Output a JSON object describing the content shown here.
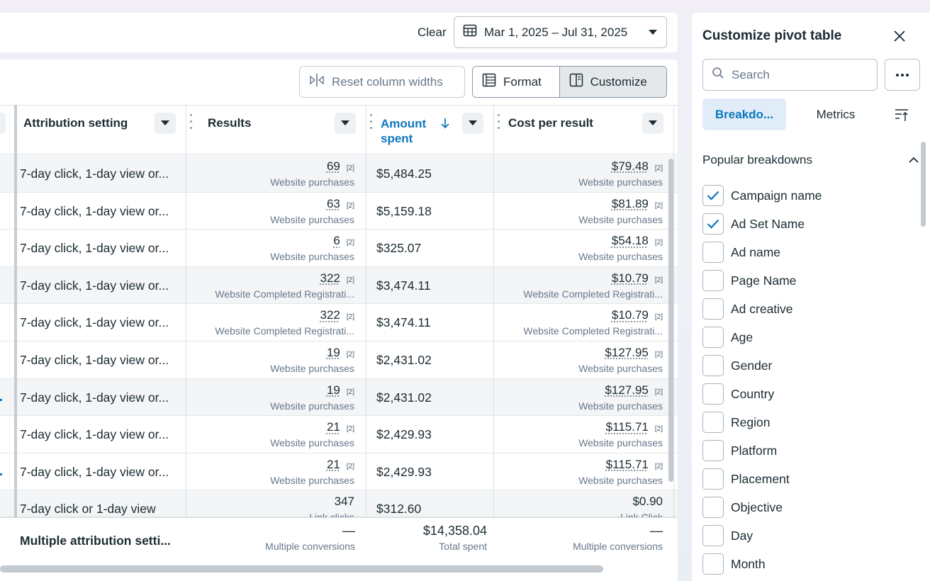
{
  "topbar": {
    "clear_label": "Clear",
    "date_range": "Mar 1, 2025 – Jul 31, 2025"
  },
  "toolbar": {
    "reset_label": "Reset column widths",
    "format_label": "Format",
    "customize_label": "Customize"
  },
  "columns": {
    "attribution": "Attribution setting",
    "results": "Results",
    "amount_line1": "Amount",
    "amount_line2": "spent",
    "cpr": "Cost per result"
  },
  "rows": [
    {
      "attr": "7-day click, 1-day view or...",
      "res": "69",
      "res_badge": "[2]",
      "res_sub": "Website purchases",
      "amt": "$5,484.25",
      "cpr": "$79.48",
      "cpr_badge": "[2]",
      "cpr_sub": "Website purchases"
    },
    {
      "attr": "7-day click, 1-day view or...",
      "res": "63",
      "res_badge": "[2]",
      "res_sub": "Website purchases",
      "amt": "$5,159.18",
      "cpr": "$81.89",
      "cpr_badge": "[2]",
      "cpr_sub": "Website purchases"
    },
    {
      "attr": "7-day click, 1-day view or...",
      "res": "6",
      "res_badge": "[2]",
      "res_sub": "Website purchases",
      "amt": "$325.07",
      "cpr": "$54.18",
      "cpr_badge": "[2]",
      "cpr_sub": "Website purchases"
    },
    {
      "attr": "7-day click, 1-day view or...",
      "res": "322",
      "res_badge": "[2]",
      "res_sub": "Website Completed Registrati...",
      "amt": "$3,474.11",
      "cpr": "$10.79",
      "cpr_badge": "[2]",
      "cpr_sub": "Website Completed Registrati..."
    },
    {
      "attr": "7-day click, 1-day view or...",
      "res": "322",
      "res_badge": "[2]",
      "res_sub": "Website Completed Registrati...",
      "amt": "$3,474.11",
      "cpr": "$10.79",
      "cpr_badge": "[2]",
      "cpr_sub": "Website Completed Registrati..."
    },
    {
      "attr": "7-day click, 1-day view or...",
      "res": "19",
      "res_badge": "[2]",
      "res_sub": "Website purchases",
      "amt": "$2,431.02",
      "cpr": "$127.95",
      "cpr_badge": "[2]",
      "cpr_sub": "Website purchases"
    },
    {
      "attr": "7-day click, 1-day view or...",
      "res": "19",
      "res_badge": "[2]",
      "res_sub": "Website purchases",
      "amt": "$2,431.02",
      "cpr": "$127.95",
      "cpr_badge": "[2]",
      "cpr_sub": "Website purchases"
    },
    {
      "attr": "7-day click, 1-day view or...",
      "res": "21",
      "res_badge": "[2]",
      "res_sub": "Website purchases",
      "amt": "$2,429.93",
      "cpr": "$115.71",
      "cpr_badge": "[2]",
      "cpr_sub": "Website purchases"
    },
    {
      "attr": "7-day click, 1-day view or...",
      "res": "21",
      "res_badge": "[2]",
      "res_sub": "Website purchases",
      "amt": "$2,429.93",
      "cpr": "$115.71",
      "cpr_badge": "[2]",
      "cpr_sub": "Website purchases"
    },
    {
      "attr": "7-day click or 1-day view",
      "res": "347",
      "res_badge": "",
      "res_sub": "Link clicks",
      "amt": "$312.60",
      "cpr": "$0.90",
      "cpr_badge": "",
      "cpr_sub": "Link Click"
    }
  ],
  "totals": {
    "attr": "Multiple attribution setti...",
    "res": "—",
    "res_sub": "Multiple conversions",
    "amt": "$14,358.04",
    "amt_sub": "Total spent",
    "cpr": "—",
    "cpr_sub": "Multiple conversions"
  },
  "panel": {
    "title": "Customize pivot table",
    "search_placeholder": "Search",
    "tab_breakdowns": "Breakdo...",
    "tab_metrics": "Metrics",
    "section_title": "Popular breakdowns",
    "items": [
      {
        "label": "Campaign name",
        "checked": true
      },
      {
        "label": "Ad Set Name",
        "checked": true
      },
      {
        "label": "Ad name",
        "checked": false
      },
      {
        "label": "Page Name",
        "checked": false
      },
      {
        "label": "Ad creative",
        "checked": false
      },
      {
        "label": "Age",
        "checked": false
      },
      {
        "label": "Gender",
        "checked": false
      },
      {
        "label": "Country",
        "checked": false
      },
      {
        "label": "Region",
        "checked": false
      },
      {
        "label": "Platform",
        "checked": false
      },
      {
        "label": "Placement",
        "checked": false
      },
      {
        "label": "Objective",
        "checked": false
      },
      {
        "label": "Day",
        "checked": false
      },
      {
        "label": "Month",
        "checked": false
      }
    ]
  },
  "colors": {
    "accent": "#0a78be",
    "text": "#1c2b33",
    "muted": "#67788a"
  }
}
